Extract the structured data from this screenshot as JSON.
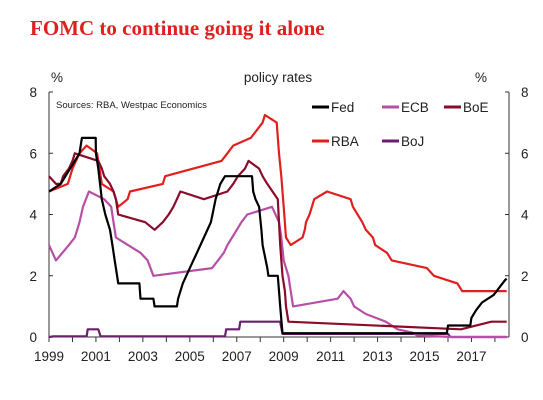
{
  "headline": "FOMC to continue going it alone",
  "chart_data": {
    "type": "line",
    "title": "policy rates",
    "left_unit": "%",
    "right_unit": "%",
    "source": "Sources: RBA, Westpac Economics",
    "ylim": [
      0,
      8
    ],
    "xlim": [
      1999,
      2018.6
    ],
    "y_ticks": [
      0,
      2,
      4,
      6,
      8
    ],
    "x_ticks": [
      1999,
      2001,
      2003,
      2005,
      2007,
      2009,
      2011,
      2013,
      2015,
      2017
    ],
    "grid": false,
    "legend": [
      {
        "name": "Fed",
        "color": "#000000"
      },
      {
        "name": "ECB",
        "color": "#b84fa6"
      },
      {
        "name": "BoE",
        "color": "#8b0b2b"
      },
      {
        "name": "RBA",
        "color": "#e0201e"
      },
      {
        "name": "BoJ",
        "color": "#6a1f6e"
      }
    ],
    "series": [
      {
        "name": "Fed",
        "color": "#000000",
        "points": [
          [
            1999.0,
            4.75
          ],
          [
            1999.5,
            5.0
          ],
          [
            1999.9,
            5.5
          ],
          [
            2000.1,
            5.75
          ],
          [
            2000.3,
            6.0
          ],
          [
            2000.4,
            6.5
          ],
          [
            2000.99,
            6.5
          ],
          [
            2001.0,
            6.0
          ],
          [
            2001.1,
            5.5
          ],
          [
            2001.25,
            4.5
          ],
          [
            2001.4,
            4.0
          ],
          [
            2001.6,
            3.5
          ],
          [
            2001.7,
            3.0
          ],
          [
            2001.8,
            2.5
          ],
          [
            2001.9,
            2.0
          ],
          [
            2001.95,
            1.75
          ],
          [
            2002.85,
            1.75
          ],
          [
            2002.9,
            1.25
          ],
          [
            2003.45,
            1.25
          ],
          [
            2003.5,
            1.0
          ],
          [
            2004.45,
            1.0
          ],
          [
            2004.5,
            1.25
          ],
          [
            2004.7,
            1.75
          ],
          [
            2005.0,
            2.25
          ],
          [
            2005.3,
            2.75
          ],
          [
            2005.6,
            3.25
          ],
          [
            2005.9,
            3.75
          ],
          [
            2006.1,
            4.5
          ],
          [
            2006.3,
            5.0
          ],
          [
            2006.5,
            5.25
          ],
          [
            2007.65,
            5.25
          ],
          [
            2007.7,
            4.75
          ],
          [
            2007.8,
            4.5
          ],
          [
            2007.95,
            4.25
          ],
          [
            2008.05,
            3.5
          ],
          [
            2008.1,
            3.0
          ],
          [
            2008.3,
            2.25
          ],
          [
            2008.35,
            2.0
          ],
          [
            2008.75,
            2.0
          ],
          [
            2008.8,
            1.5
          ],
          [
            2008.85,
            1.0
          ],
          [
            2008.95,
            0.125
          ],
          [
            2015.95,
            0.125
          ],
          [
            2016.0,
            0.375
          ],
          [
            2016.95,
            0.375
          ],
          [
            2017.0,
            0.625
          ],
          [
            2017.2,
            0.875
          ],
          [
            2017.45,
            1.125
          ],
          [
            2017.95,
            1.375
          ],
          [
            2018.2,
            1.625
          ],
          [
            2018.45,
            1.875
          ],
          [
            2018.5,
            1.9
          ]
        ]
      },
      {
        "name": "ECB",
        "color": "#b84fa6",
        "points": [
          [
            1999.0,
            3.0
          ],
          [
            1999.3,
            2.5
          ],
          [
            1999.85,
            3.0
          ],
          [
            2000.1,
            3.25
          ],
          [
            2000.2,
            3.5
          ],
          [
            2000.3,
            3.75
          ],
          [
            2000.45,
            4.25
          ],
          [
            2000.7,
            4.75
          ],
          [
            2001.35,
            4.5
          ],
          [
            2001.65,
            4.25
          ],
          [
            2001.75,
            3.75
          ],
          [
            2001.85,
            3.25
          ],
          [
            2002.9,
            2.75
          ],
          [
            2003.2,
            2.5
          ],
          [
            2003.45,
            2.0
          ],
          [
            2005.95,
            2.25
          ],
          [
            2006.2,
            2.5
          ],
          [
            2006.45,
            2.75
          ],
          [
            2006.6,
            3.0
          ],
          [
            2006.8,
            3.25
          ],
          [
            2007.0,
            3.5
          ],
          [
            2007.2,
            3.75
          ],
          [
            2007.45,
            4.0
          ],
          [
            2008.5,
            4.25
          ],
          [
            2008.8,
            3.75
          ],
          [
            2008.9,
            3.25
          ],
          [
            2009.0,
            2.5
          ],
          [
            2009.2,
            2.0
          ],
          [
            2009.3,
            1.5
          ],
          [
            2009.35,
            1.25
          ],
          [
            2009.4,
            1.0
          ],
          [
            2011.3,
            1.25
          ],
          [
            2011.55,
            1.5
          ],
          [
            2011.85,
            1.25
          ],
          [
            2012.0,
            1.0
          ],
          [
            2012.5,
            0.75
          ],
          [
            2013.35,
            0.5
          ],
          [
            2013.85,
            0.25
          ],
          [
            2014.45,
            0.15
          ],
          [
            2014.7,
            0.05
          ],
          [
            2016.2,
            0.0
          ],
          [
            2018.5,
            0.0
          ]
        ]
      },
      {
        "name": "BoE",
        "color": "#8b0b2b",
        "points": [
          [
            1999.0,
            5.25
          ],
          [
            1999.3,
            5.0
          ],
          [
            1999.5,
            5.0
          ],
          [
            1999.6,
            5.25
          ],
          [
            1999.85,
            5.5
          ],
          [
            2000.0,
            5.75
          ],
          [
            2000.1,
            6.0
          ],
          [
            2001.1,
            5.75
          ],
          [
            2001.25,
            5.5
          ],
          [
            2001.35,
            5.25
          ],
          [
            2001.6,
            5.0
          ],
          [
            2001.75,
            4.75
          ],
          [
            2001.85,
            4.5
          ],
          [
            2001.95,
            4.0
          ],
          [
            2003.1,
            3.75
          ],
          [
            2003.5,
            3.5
          ],
          [
            2003.85,
            3.75
          ],
          [
            2004.1,
            4.0
          ],
          [
            2004.3,
            4.25
          ],
          [
            2004.45,
            4.5
          ],
          [
            2004.6,
            4.75
          ],
          [
            2005.6,
            4.5
          ],
          [
            2006.6,
            4.75
          ],
          [
            2006.85,
            5.0
          ],
          [
            2007.05,
            5.25
          ],
          [
            2007.35,
            5.5
          ],
          [
            2007.5,
            5.75
          ],
          [
            2007.95,
            5.5
          ],
          [
            2008.1,
            5.25
          ],
          [
            2008.3,
            5.0
          ],
          [
            2008.75,
            4.5
          ],
          [
            2008.85,
            3.0
          ],
          [
            2008.95,
            2.0
          ],
          [
            2009.05,
            1.5
          ],
          [
            2009.1,
            1.0
          ],
          [
            2009.2,
            0.5
          ],
          [
            2016.55,
            0.25
          ],
          [
            2017.85,
            0.5
          ],
          [
            2018.5,
            0.5
          ]
        ]
      },
      {
        "name": "RBA",
        "color": "#e0201e",
        "points": [
          [
            1999.0,
            4.75
          ],
          [
            1999.8,
            5.0
          ],
          [
            2000.0,
            5.5
          ],
          [
            2000.15,
            5.75
          ],
          [
            2000.3,
            6.0
          ],
          [
            2000.6,
            6.25
          ],
          [
            2001.05,
            6.0
          ],
          [
            2001.15,
            5.5
          ],
          [
            2001.25,
            5.0
          ],
          [
            2001.75,
            4.75
          ],
          [
            2001.85,
            4.5
          ],
          [
            2001.95,
            4.25
          ],
          [
            2002.35,
            4.5
          ],
          [
            2002.45,
            4.75
          ],
          [
            2003.85,
            5.0
          ],
          [
            2003.95,
            5.25
          ],
          [
            2005.15,
            5.5
          ],
          [
            2006.35,
            5.75
          ],
          [
            2006.6,
            6.0
          ],
          [
            2006.85,
            6.25
          ],
          [
            2007.6,
            6.5
          ],
          [
            2007.85,
            6.75
          ],
          [
            2008.1,
            7.0
          ],
          [
            2008.2,
            7.25
          ],
          [
            2008.7,
            7.0
          ],
          [
            2008.8,
            6.0
          ],
          [
            2008.9,
            5.25
          ],
          [
            2009.0,
            4.25
          ],
          [
            2009.1,
            3.25
          ],
          [
            2009.3,
            3.0
          ],
          [
            2009.8,
            3.25
          ],
          [
            2009.9,
            3.5
          ],
          [
            2009.95,
            3.75
          ],
          [
            2010.1,
            4.0
          ],
          [
            2010.2,
            4.25
          ],
          [
            2010.3,
            4.5
          ],
          [
            2010.85,
            4.75
          ],
          [
            2011.85,
            4.5
          ],
          [
            2011.95,
            4.25
          ],
          [
            2012.35,
            3.75
          ],
          [
            2012.5,
            3.5
          ],
          [
            2012.8,
            3.25
          ],
          [
            2012.9,
            3.0
          ],
          [
            2013.4,
            2.75
          ],
          [
            2013.6,
            2.5
          ],
          [
            2015.1,
            2.25
          ],
          [
            2015.4,
            2.0
          ],
          [
            2016.4,
            1.75
          ],
          [
            2016.6,
            1.5
          ],
          [
            2018.5,
            1.5
          ]
        ]
      },
      {
        "name": "BoJ",
        "color": "#6a1f6e",
        "points": [
          [
            1999.0,
            0.0
          ],
          [
            1999.2,
            0.02
          ],
          [
            2000.6,
            0.02
          ],
          [
            2000.65,
            0.25
          ],
          [
            2001.1,
            0.25
          ],
          [
            2001.2,
            0.02
          ],
          [
            2006.5,
            0.02
          ],
          [
            2006.55,
            0.25
          ],
          [
            2007.1,
            0.25
          ],
          [
            2007.15,
            0.5
          ],
          [
            2008.85,
            0.5
          ],
          [
            2008.9,
            0.3
          ],
          [
            2008.95,
            0.1
          ],
          [
            2016.0,
            0.1
          ],
          [
            2016.1,
            0.0
          ],
          [
            2018.5,
            0.0
          ]
        ]
      }
    ]
  }
}
